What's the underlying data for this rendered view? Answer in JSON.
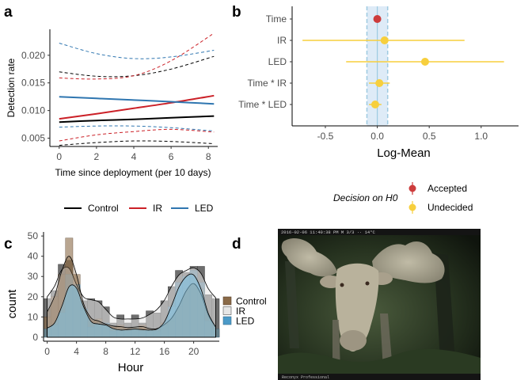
{
  "panels": {
    "a": "a",
    "b": "b",
    "c": "c",
    "d": "d"
  },
  "chart_data": [
    {
      "panel": "a",
      "type": "line",
      "xlabel": "Time since deployment (per 10 days)",
      "ylabel": "Detection rate",
      "xlim": [
        -0.5,
        8.5
      ],
      "ylim": [
        0.0035,
        0.0247
      ],
      "xticks": [
        "0",
        "2",
        "4",
        "6",
        "8"
      ],
      "yticks": [
        "0.005",
        "0.010",
        "0.015",
        "0.020"
      ],
      "grid": false,
      "legend_position": "bottom",
      "series": [
        {
          "name": "Control",
          "color": "#000000",
          "x": [
            0,
            2,
            4,
            6,
            8.3
          ],
          "mean": [
            0.0079,
            0.0082,
            0.0084,
            0.0087,
            0.009
          ],
          "upper": [
            0.017,
            0.0162,
            0.0163,
            0.0175,
            0.0198
          ],
          "lower": [
            0.0037,
            0.0042,
            0.0045,
            0.0044,
            0.004
          ]
        },
        {
          "name": "IR",
          "color": "#cb2027",
          "x": [
            0,
            2,
            4,
            6,
            8.3
          ],
          "mean": [
            0.0085,
            0.0094,
            0.0104,
            0.0114,
            0.0127
          ],
          "upper": [
            0.0159,
            0.0157,
            0.0163,
            0.019,
            0.024
          ],
          "lower": [
            0.0045,
            0.0056,
            0.0062,
            0.0066,
            0.0061
          ]
        },
        {
          "name": "LED",
          "color": "#2f76b0",
          "x": [
            0,
            2,
            4,
            6,
            8.3
          ],
          "mean": [
            0.0125,
            0.0122,
            0.0119,
            0.0116,
            0.0112
          ],
          "upper": [
            0.0222,
            0.0203,
            0.0194,
            0.0197,
            0.0209
          ],
          "lower": [
            0.007,
            0.0072,
            0.0072,
            0.0069,
            0.0063
          ]
        }
      ]
    },
    {
      "panel": "b",
      "type": "scatter",
      "xlabel": "Log-Mean",
      "xlim": [
        -0.82,
        1.36
      ],
      "xticks": [
        "-0.5",
        "0.0",
        "0.5",
        "1.0"
      ],
      "categories": [
        "Time",
        "IR",
        "LED",
        "Time * IR",
        "Time * LED"
      ],
      "estimates": [
        0.0,
        0.07,
        0.46,
        0.02,
        -0.02
      ],
      "ci_low": [
        -0.03,
        -0.72,
        -0.3,
        -0.08,
        -0.08
      ],
      "ci_high": [
        0.03,
        0.84,
        1.22,
        0.12,
        0.04
      ],
      "decision": [
        "Accepted",
        "Undecided",
        "Undecided",
        "Undecided",
        "Undecided"
      ],
      "rope": [
        -0.1,
        0.1
      ],
      "legend_title": "Decision on H0",
      "legend": [
        {
          "label": "Accepted",
          "color": "#cd3c3c"
        },
        {
          "label": "Undecided",
          "color": "#f7cf3d"
        }
      ]
    },
    {
      "panel": "c",
      "type": "bar",
      "xlabel": "Hour",
      "ylabel": "count",
      "xlim": [
        -0.5,
        23.5
      ],
      "ylim": [
        -2,
        52
      ],
      "xticks": [
        "0",
        "4",
        "8",
        "12",
        "16",
        "20"
      ],
      "yticks": [
        "0",
        "10",
        "20",
        "30",
        "40",
        "50"
      ],
      "legend": [
        {
          "label": "Control",
          "color": "#8a6a48"
        },
        {
          "label": "IR",
          "color": "#e6e6e6"
        },
        {
          "label": "LED",
          "color": "#4b9ac8"
        }
      ],
      "hours": [
        0,
        1,
        2,
        3,
        4,
        5,
        6,
        7,
        8,
        9,
        10,
        11,
        12,
        13,
        14,
        15,
        16,
        17,
        18,
        19,
        20,
        21,
        22,
        23
      ],
      "series": [
        {
          "name": "Control",
          "values": [
            10,
            20,
            31,
            49,
            31,
            13,
            8,
            9,
            6,
            5,
            6,
            4,
            5,
            6,
            4,
            3,
            7,
            8,
            15,
            24,
            29,
            24,
            8,
            4
          ]
        },
        {
          "name": "IR",
          "values": [
            19,
            23,
            36,
            38,
            24,
            18,
            19,
            18,
            15,
            7,
            11,
            7,
            11,
            7,
            13,
            12,
            18,
            25,
            33,
            32,
            35,
            35,
            21,
            19
          ]
        },
        {
          "name": "LED",
          "values": [
            4,
            6,
            12,
            31,
            26,
            14,
            5,
            7,
            7,
            3,
            4,
            3,
            5,
            3,
            4,
            3,
            6,
            15,
            27,
            30,
            33,
            27,
            8,
            4
          ]
        }
      ]
    }
  ],
  "photo": {
    "panel": "d",
    "stamp_top": "2016-02-06 11:40:38 PM M 3/3   ·· 14°C",
    "stamp_bottom": "Reconyx Professional"
  }
}
